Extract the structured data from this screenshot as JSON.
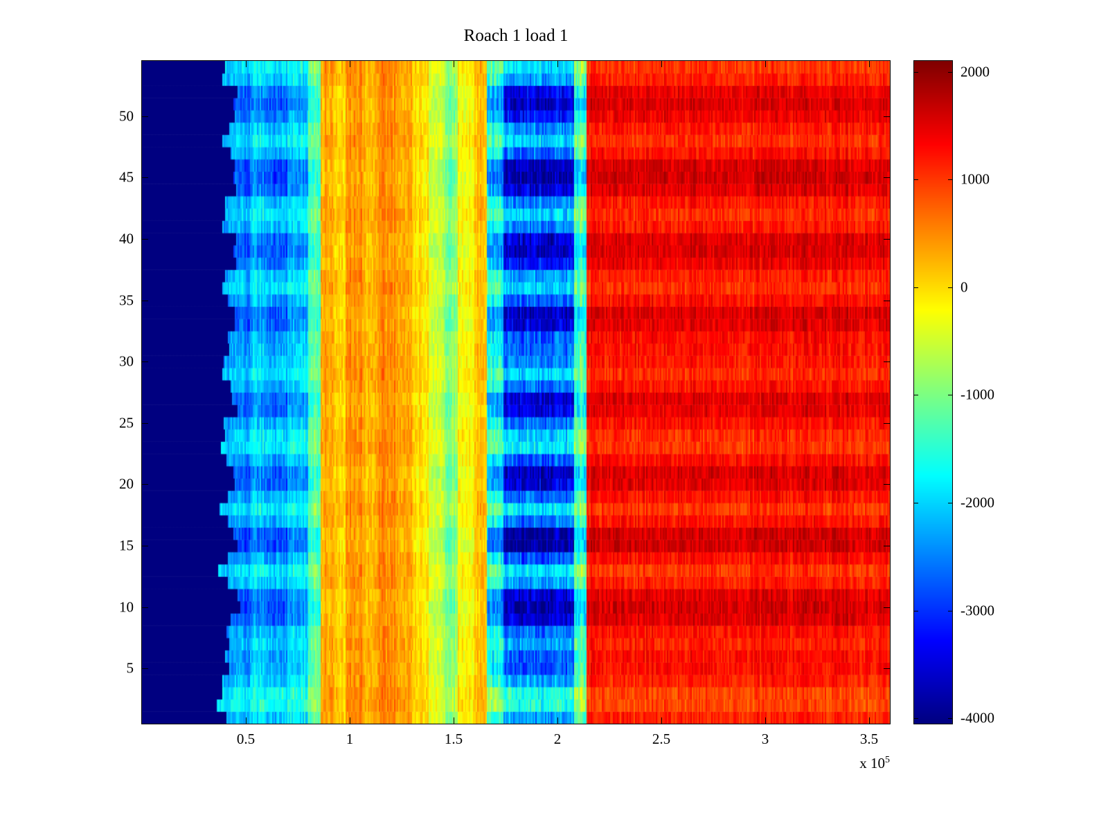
{
  "chart_data": {
    "type": "heatmap",
    "title": "Roach 1 load 1",
    "colormap": "jet",
    "xlim": [
      0,
      360000
    ],
    "ylim": [
      1,
      54
    ],
    "clim": [
      -4050,
      2100
    ],
    "rows": 54,
    "x_exponent_prefix": "x 10",
    "x_exponent": "5",
    "x_ticks": {
      "values": [
        50000,
        100000,
        150000,
        200000,
        250000,
        300000,
        350000
      ],
      "labels": [
        "0.5",
        "1",
        "1.5",
        "2",
        "2.5",
        "3",
        "3.5"
      ]
    },
    "y_ticks": {
      "values": [
        5,
        10,
        15,
        20,
        25,
        30,
        35,
        40,
        45,
        50
      ],
      "labels": [
        "5",
        "10",
        "15",
        "20",
        "25",
        "30",
        "35",
        "40",
        "45",
        "50"
      ]
    },
    "colorbar_ticks": {
      "values": [
        2000,
        1000,
        0,
        -1000,
        -2000,
        -3000,
        -4000
      ],
      "labels": [
        "2000",
        "1000",
        "0",
        "-1000",
        "-2000",
        "-3000",
        "-4000"
      ]
    },
    "row_pattern": [
      0,
      -0.5,
      -0.5,
      0,
      0.3,
      0.3,
      0,
      0.2,
      0.8,
      1,
      0.8,
      0,
      -0.3,
      0.3,
      1,
      1,
      0.2,
      -0.3,
      0.2,
      0.8,
      0.9,
      0.3,
      -0.3,
      -0.2,
      0.2,
      0.7,
      0.8,
      0.2,
      -0.2,
      0.1,
      0.2,
      0.3,
      0.8,
      0.9,
      0.3,
      -0.2,
      0,
      0.6,
      0.9,
      0.8,
      0.1,
      -0.2,
      0.1,
      0.8,
      1,
      0.9,
      0.2,
      -0.2,
      0.1,
      0.6,
      0.9,
      0.7,
      0,
      -0.3
    ],
    "bands": [
      {
        "x0": 0,
        "x1": 40000,
        "value": -4300,
        "row_amp": 0,
        "noise": 80
      },
      {
        "x0": 40000,
        "x1": 52000,
        "value": -2200,
        "row_amp": -700,
        "noise": 350
      },
      {
        "x0": 52000,
        "x1": 60000,
        "value": -1900,
        "row_amp": -700,
        "noise": 350
      },
      {
        "x0": 60000,
        "x1": 70000,
        "value": -2100,
        "row_amp": -800,
        "noise": 350
      },
      {
        "x0": 70000,
        "x1": 80000,
        "value": -1800,
        "row_amp": -650,
        "noise": 350
      },
      {
        "x0": 80000,
        "x1": 86000,
        "value": -1100,
        "row_amp": -450,
        "noise": 320
      },
      {
        "x0": 86000,
        "x1": 92000,
        "value": 400,
        "row_amp": -150,
        "noise": 260
      },
      {
        "x0": 92000,
        "x1": 98000,
        "value": 120,
        "row_amp": -150,
        "noise": 260
      },
      {
        "x0": 98000,
        "x1": 106000,
        "value": 500,
        "row_amp": -120,
        "noise": 260
      },
      {
        "x0": 106000,
        "x1": 114000,
        "value": 250,
        "row_amp": -120,
        "noise": 260
      },
      {
        "x0": 114000,
        "x1": 122000,
        "value": 550,
        "row_amp": -120,
        "noise": 260
      },
      {
        "x0": 122000,
        "x1": 130000,
        "value": 300,
        "row_amp": -120,
        "noise": 260
      },
      {
        "x0": 130000,
        "x1": 138000,
        "value": 30,
        "row_amp": -150,
        "noise": 260
      },
      {
        "x0": 138000,
        "x1": 146000,
        "value": -500,
        "row_amp": -250,
        "noise": 300
      },
      {
        "x0": 146000,
        "x1": 152000,
        "value": -850,
        "row_amp": -300,
        "noise": 300
      },
      {
        "x0": 152000,
        "x1": 160000,
        "value": -150,
        "row_amp": -200,
        "noise": 260
      },
      {
        "x0": 160000,
        "x1": 166000,
        "value": 250,
        "row_amp": -150,
        "noise": 260
      },
      {
        "x0": 166000,
        "x1": 174000,
        "value": -1500,
        "row_amp": -1100,
        "noise": 400
      },
      {
        "x0": 174000,
        "x1": 208000,
        "value": -2300,
        "row_amp": -1500,
        "noise": 420
      },
      {
        "x0": 208000,
        "x1": 214000,
        "value": -1100,
        "row_amp": -900,
        "noise": 420
      },
      {
        "x0": 214000,
        "x1": 360000,
        "value": 1150,
        "row_amp": 450,
        "noise": 260
      }
    ],
    "seed": 20
  }
}
